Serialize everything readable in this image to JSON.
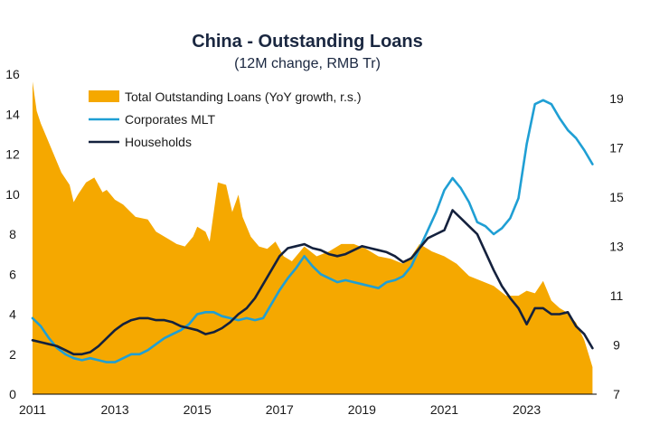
{
  "chart_data": {
    "type": "area+line",
    "title": "China - Outstanding Loans",
    "subtitle": "(12M change, RMB Tr)",
    "colors": {
      "total": "#f5a800",
      "corporates": "#1f9fd4",
      "households": "#14213d",
      "title": "#1a2740",
      "axis": "#000000"
    },
    "x_axis": {
      "range": [
        2011.0,
        2024.7
      ],
      "ticks": [
        2011,
        2013,
        2015,
        2017,
        2019,
        2021,
        2023
      ],
      "tick_labels": [
        "2011",
        "2013",
        "2015",
        "2017",
        "2019",
        "2021",
        "2023"
      ]
    },
    "y_left": {
      "range": [
        0,
        16
      ],
      "ticks": [
        0,
        2,
        4,
        6,
        8,
        10,
        12,
        14,
        16
      ],
      "tick_labels": [
        "0",
        "2",
        "4",
        "6",
        "8",
        "10",
        "12",
        "14",
        "16"
      ]
    },
    "y_right": {
      "range": [
        7,
        20
      ],
      "ticks": [
        7,
        9,
        11,
        13,
        15,
        17,
        19
      ],
      "tick_labels": [
        "7",
        "9",
        "11",
        "13",
        "15",
        "17",
        "19"
      ]
    },
    "legend": {
      "position": "top-left",
      "entries": [
        {
          "label": "Total Outstanding Loans (YoY growth, r.s.)",
          "series": "total",
          "style": "area"
        },
        {
          "label": "Corporates MLT",
          "series": "corporates",
          "style": "line"
        },
        {
          "label": "Households",
          "series": "households",
          "style": "line"
        }
      ]
    },
    "series": [
      {
        "name": "Total Outstanding Loans (YoY growth, r.s.)",
        "key": "total",
        "axis": "right",
        "x": [
          2011.0,
          2011.1,
          2011.2,
          2011.3,
          2011.5,
          2011.7,
          2011.9,
          2012.0,
          2012.1,
          2012.3,
          2012.5,
          2012.7,
          2012.8,
          2013.0,
          2013.2,
          2013.5,
          2013.8,
          2014.0,
          2014.3,
          2014.5,
          2014.7,
          2014.9,
          2015.0,
          2015.2,
          2015.3,
          2015.5,
          2015.7,
          2015.85,
          2016.0,
          2016.1,
          2016.3,
          2016.5,
          2016.7,
          2016.9,
          2017.1,
          2017.3,
          2017.6,
          2017.9,
          2018.2,
          2018.5,
          2018.8,
          2019.1,
          2019.4,
          2019.7,
          2020.0,
          2020.2,
          2020.4,
          2020.7,
          2021.0,
          2021.3,
          2021.6,
          2021.9,
          2022.2,
          2022.5,
          2022.8,
          2023.0,
          2023.2,
          2023.4,
          2023.6,
          2023.8,
          2024.0,
          2024.2,
          2024.4,
          2024.6
        ],
        "values": [
          19.7,
          18.5,
          18.0,
          17.6,
          16.8,
          16.0,
          15.5,
          14.8,
          15.1,
          15.6,
          15.8,
          15.2,
          15.3,
          14.9,
          14.7,
          14.2,
          14.1,
          13.6,
          13.3,
          13.1,
          13.0,
          13.4,
          13.8,
          13.6,
          13.2,
          15.6,
          15.5,
          14.4,
          15.1,
          14.2,
          13.4,
          13.0,
          12.9,
          13.2,
          12.6,
          12.4,
          13.0,
          12.6,
          12.8,
          13.1,
          13.1,
          12.9,
          12.6,
          12.5,
          12.3,
          12.6,
          13.1,
          12.8,
          12.6,
          12.3,
          11.8,
          11.6,
          11.4,
          11.0,
          11.0,
          11.2,
          11.1,
          11.6,
          10.8,
          10.5,
          10.3,
          9.9,
          9.2,
          8.1
        ]
      },
      {
        "name": "Corporates MLT",
        "key": "corporates",
        "axis": "left",
        "x": [
          2011.0,
          2011.2,
          2011.4,
          2011.6,
          2011.8,
          2012.0,
          2012.2,
          2012.4,
          2012.6,
          2012.8,
          2013.0,
          2013.2,
          2013.4,
          2013.6,
          2013.8,
          2014.0,
          2014.2,
          2014.4,
          2014.6,
          2014.8,
          2015.0,
          2015.2,
          2015.4,
          2015.6,
          2015.8,
          2016.0,
          2016.2,
          2016.4,
          2016.6,
          2016.8,
          2017.0,
          2017.2,
          2017.4,
          2017.6,
          2017.8,
          2018.0,
          2018.2,
          2018.4,
          2018.6,
          2018.8,
          2019.0,
          2019.2,
          2019.4,
          2019.6,
          2019.8,
          2020.0,
          2020.2,
          2020.4,
          2020.6,
          2020.8,
          2021.0,
          2021.2,
          2021.4,
          2021.6,
          2021.8,
          2022.0,
          2022.2,
          2022.4,
          2022.6,
          2022.8,
          2023.0,
          2023.2,
          2023.4,
          2023.6,
          2023.8,
          2024.0,
          2024.2,
          2024.4,
          2024.6
        ],
        "values": [
          3.8,
          3.4,
          2.8,
          2.3,
          2.0,
          1.8,
          1.7,
          1.8,
          1.7,
          1.6,
          1.6,
          1.8,
          2.0,
          2.0,
          2.2,
          2.5,
          2.8,
          3.0,
          3.2,
          3.5,
          4.0,
          4.1,
          4.1,
          3.9,
          3.8,
          3.7,
          3.8,
          3.7,
          3.8,
          4.5,
          5.2,
          5.8,
          6.3,
          6.9,
          6.4,
          6.0,
          5.8,
          5.6,
          5.7,
          5.6,
          5.5,
          5.4,
          5.3,
          5.6,
          5.7,
          5.9,
          6.4,
          7.3,
          8.2,
          9.1,
          10.2,
          10.8,
          10.3,
          9.6,
          8.6,
          8.4,
          8.0,
          8.3,
          8.8,
          9.8,
          12.5,
          14.5,
          14.7,
          14.5,
          13.8,
          13.2,
          12.8,
          12.2,
          11.5
        ]
      },
      {
        "name": "Households",
        "key": "households",
        "axis": "left",
        "x": [
          2011.0,
          2011.2,
          2011.4,
          2011.6,
          2011.8,
          2012.0,
          2012.2,
          2012.4,
          2012.6,
          2012.8,
          2013.0,
          2013.2,
          2013.4,
          2013.6,
          2013.8,
          2014.0,
          2014.2,
          2014.4,
          2014.6,
          2014.8,
          2015.0,
          2015.2,
          2015.4,
          2015.6,
          2015.8,
          2016.0,
          2016.2,
          2016.4,
          2016.6,
          2016.8,
          2017.0,
          2017.2,
          2017.4,
          2017.6,
          2017.8,
          2018.0,
          2018.2,
          2018.4,
          2018.6,
          2018.8,
          2019.0,
          2019.2,
          2019.4,
          2019.6,
          2019.8,
          2020.0,
          2020.2,
          2020.4,
          2020.6,
          2020.8,
          2021.0,
          2021.2,
          2021.4,
          2021.6,
          2021.8,
          2022.0,
          2022.2,
          2022.4,
          2022.6,
          2022.8,
          2023.0,
          2023.2,
          2023.4,
          2023.6,
          2023.8,
          2024.0,
          2024.2,
          2024.4,
          2024.6
        ],
        "values": [
          2.7,
          2.6,
          2.5,
          2.4,
          2.2,
          2.0,
          2.0,
          2.1,
          2.4,
          2.8,
          3.2,
          3.5,
          3.7,
          3.8,
          3.8,
          3.7,
          3.7,
          3.6,
          3.4,
          3.3,
          3.2,
          3.0,
          3.1,
          3.3,
          3.6,
          4.0,
          4.3,
          4.8,
          5.5,
          6.2,
          6.9,
          7.3,
          7.4,
          7.5,
          7.3,
          7.2,
          7.0,
          6.9,
          7.0,
          7.2,
          7.4,
          7.3,
          7.2,
          7.1,
          6.9,
          6.6,
          6.8,
          7.3,
          7.8,
          8.0,
          8.2,
          9.2,
          8.8,
          8.4,
          8.0,
          7.1,
          6.2,
          5.4,
          4.8,
          4.3,
          3.5,
          4.3,
          4.3,
          4.0,
          4.0,
          4.1,
          3.4,
          3.0,
          2.3
        ]
      }
    ]
  }
}
